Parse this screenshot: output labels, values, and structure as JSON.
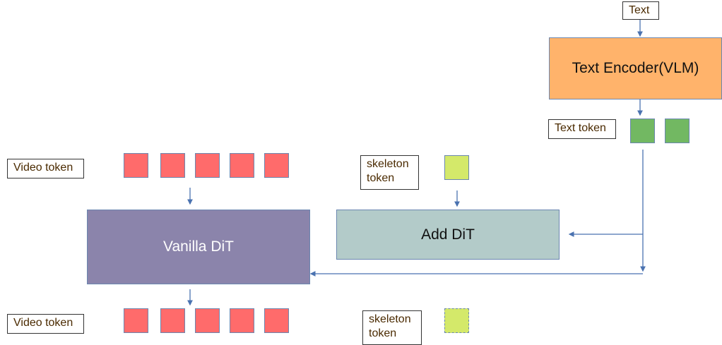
{
  "labels": {
    "text": "Text",
    "text_encoder": "Text Encoder(VLM)",
    "text_token": "Text token",
    "video_token_in": "Video token",
    "video_token_out": "Video token",
    "skeleton_token_in": "skeleton token",
    "skeleton_token_out": "skeleton token",
    "vanilla_dit": "Vanilla DiT",
    "add_dit": "Add DiT"
  },
  "colors": {
    "video_token": "#ff6b6b",
    "text_token": "#72b862",
    "skeleton_token": "#d4e96a",
    "text_encoder": "#ffb36b",
    "vanilla_dit": "#8b84ab",
    "add_dit": "#b3cbc9",
    "arrow": "#4a72b0"
  }
}
